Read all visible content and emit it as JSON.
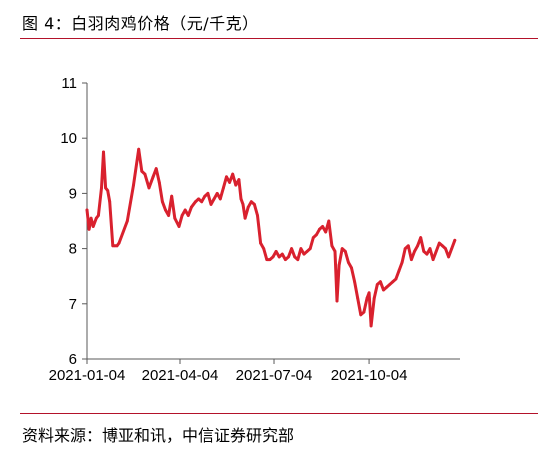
{
  "figure": {
    "title": "图 4：白羽肉鸡价格（元/千克）",
    "source": "资料来源：博亚和讯，中信证券研究部"
  },
  "colors": {
    "series": "#d9212e",
    "rule": "#b3122a",
    "axis": "#595959"
  },
  "chart_data": {
    "type": "line",
    "title": "",
    "xlabel": "",
    "ylabel": "",
    "ylim": [
      6,
      11
    ],
    "yticks": [
      "6",
      "7",
      "8",
      "9",
      "10",
      "11"
    ],
    "xlim": [
      "2021-01-04",
      "2021-12-31"
    ],
    "xticks": [
      "2021-01-04",
      "2021-04-04",
      "2021-07-04",
      "2021-10-04"
    ],
    "grid": false,
    "legend": "none",
    "series": [
      {
        "name": "",
        "x": [
          "2021-01-04",
          "2021-01-06",
          "2021-01-08",
          "2021-01-10",
          "2021-01-13",
          "2021-01-15",
          "2021-01-18",
          "2021-01-20",
          "2021-01-22",
          "2021-01-24",
          "2021-01-26",
          "2021-01-29",
          "2021-01-31",
          "2021-02-02",
          "2021-02-04",
          "2021-02-12",
          "2021-02-18",
          "2021-02-23",
          "2021-02-26",
          "2021-03-01",
          "2021-03-05",
          "2021-03-09",
          "2021-03-12",
          "2021-03-15",
          "2021-03-18",
          "2021-03-21",
          "2021-03-24",
          "2021-03-27",
          "2021-03-30",
          "2021-04-03",
          "2021-04-06",
          "2021-04-09",
          "2021-04-12",
          "2021-04-15",
          "2021-04-19",
          "2021-04-22",
          "2021-04-25",
          "2021-04-28",
          "2021-05-01",
          "2021-05-04",
          "2021-05-07",
          "2021-05-10",
          "2021-05-13",
          "2021-05-16",
          "2021-05-19",
          "2021-05-22",
          "2021-05-25",
          "2021-05-28",
          "2021-05-31",
          "2021-06-02",
          "2021-06-04",
          "2021-06-06",
          "2021-06-09",
          "2021-06-12",
          "2021-06-15",
          "2021-06-18",
          "2021-06-21",
          "2021-06-24",
          "2021-06-27",
          "2021-06-30",
          "2021-07-03",
          "2021-07-06",
          "2021-07-09",
          "2021-07-12",
          "2021-07-15",
          "2021-07-18",
          "2021-07-21",
          "2021-07-24",
          "2021-07-27",
          "2021-07-30",
          "2021-08-02",
          "2021-08-05",
          "2021-08-08",
          "2021-08-11",
          "2021-08-14",
          "2021-08-17",
          "2021-08-20",
          "2021-08-23",
          "2021-08-26",
          "2021-08-29",
          "2021-09-01",
          "2021-09-03",
          "2021-09-05",
          "2021-09-08",
          "2021-09-11",
          "2021-09-14",
          "2021-09-17",
          "2021-09-20",
          "2021-09-23",
          "2021-09-26",
          "2021-09-29",
          "2021-10-02",
          "2021-10-04",
          "2021-10-06",
          "2021-10-09",
          "2021-10-12",
          "2021-10-15",
          "2021-10-18",
          "2021-10-21",
          "2021-10-24",
          "2021-10-27",
          "2021-10-30",
          "2021-11-02",
          "2021-11-05",
          "2021-11-08",
          "2021-11-11",
          "2021-11-14",
          "2021-11-17",
          "2021-11-20",
          "2021-11-23",
          "2021-11-26",
          "2021-11-29",
          "2021-12-02",
          "2021-12-05",
          "2021-12-08",
          "2021-12-11",
          "2021-12-14",
          "2021-12-17",
          "2021-12-20",
          "2021-12-23",
          "2021-12-26"
        ],
        "values": [
          8.7,
          8.35,
          8.55,
          8.4,
          8.55,
          8.6,
          9.1,
          9.75,
          9.1,
          9.05,
          8.85,
          8.05,
          8.05,
          8.05,
          8.1,
          8.5,
          9.15,
          9.8,
          9.4,
          9.35,
          9.1,
          9.3,
          9.45,
          9.2,
          8.85,
          8.7,
          8.6,
          8.95,
          8.55,
          8.4,
          8.6,
          8.7,
          8.6,
          8.75,
          8.85,
          8.9,
          8.85,
          8.95,
          9.0,
          8.8,
          8.9,
          9.0,
          8.9,
          9.1,
          9.3,
          9.2,
          9.35,
          9.15,
          9.25,
          8.9,
          8.8,
          8.55,
          8.75,
          8.85,
          8.8,
          8.6,
          8.1,
          8.0,
          7.8,
          7.8,
          7.85,
          7.95,
          7.85,
          7.9,
          7.8,
          7.85,
          8.0,
          7.85,
          7.8,
          8.0,
          7.9,
          7.95,
          8.0,
          8.2,
          8.25,
          8.35,
          8.4,
          8.3,
          8.5,
          8.05,
          7.95,
          7.05,
          7.7,
          8.0,
          7.95,
          7.75,
          7.65,
          7.4,
          7.1,
          6.8,
          6.85,
          7.1,
          7.2,
          6.6,
          7.1,
          7.35,
          7.4,
          7.25,
          7.3,
          7.35,
          7.4,
          7.45,
          7.6,
          7.75,
          8.0,
          8.05,
          7.8,
          7.95,
          8.05,
          8.2,
          7.95,
          7.9,
          8.0,
          7.8,
          7.95,
          8.1,
          8.05,
          8.0,
          7.85,
          8.0,
          8.15
        ]
      }
    ]
  }
}
